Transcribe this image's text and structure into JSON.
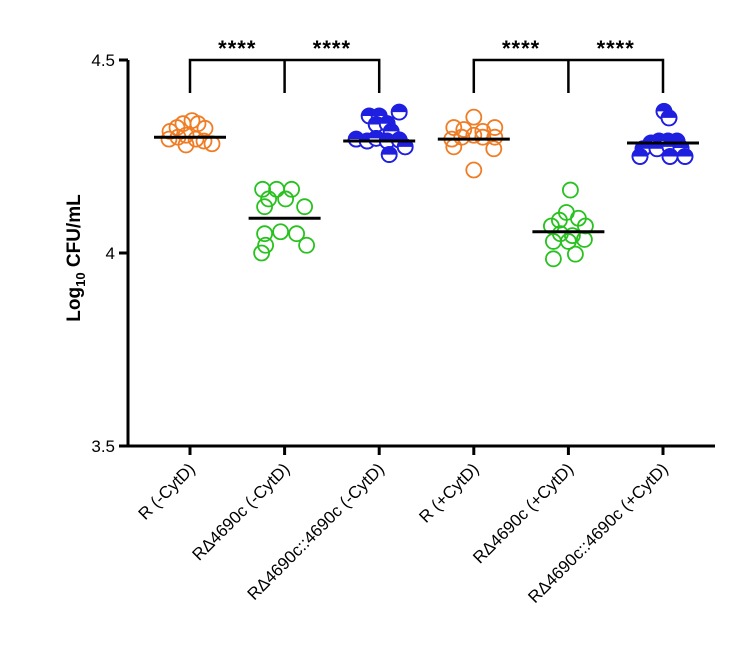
{
  "chart_data": {
    "type": "scatter",
    "ylabel": {
      "prefix": "Log",
      "subscript": "10",
      "suffix": " CFU/mL"
    },
    "ylim": [
      3.5,
      4.5
    ],
    "yticks": [
      "3.5",
      "4",
      "4.5"
    ],
    "categories": [
      "R (-CytD)",
      "RΔ4690c (-CytD)",
      "RΔ4690c::4690c (-CytD)",
      "R (+CytD)",
      "RΔ4690c (+CytD)",
      "RΔ4690c::4690c (+CytD)"
    ],
    "colors": [
      "#f07c24",
      "#27c21d",
      "#1f1fe0",
      "#f07c24",
      "#27c21d",
      "#1f1fe0"
    ],
    "groups": [
      {
        "mean": 4.3,
        "points": [
          {
            "dx": -0.2,
            "y": 4.315
          },
          {
            "dx": -0.13,
            "y": 4.325
          },
          {
            "dx": -0.07,
            "y": 4.335
          },
          {
            "dx": 0.02,
            "y": 4.343
          },
          {
            "dx": 0.08,
            "y": 4.335
          },
          {
            "dx": 0.15,
            "y": 4.323
          },
          {
            "dx": -0.21,
            "y": 4.295
          },
          {
            "dx": -0.12,
            "y": 4.3
          },
          {
            "dx": -0.04,
            "y": 4.305
          },
          {
            "dx": 0.06,
            "y": 4.295
          },
          {
            "dx": 0.14,
            "y": 4.29
          },
          {
            "dx": -0.04,
            "y": 4.28
          },
          {
            "dx": 0.22,
            "y": 4.283
          }
        ]
      },
      {
        "mean": 4.09,
        "points": [
          {
            "dx": -0.22,
            "y": 4.165
          },
          {
            "dx": -0.08,
            "y": 4.165
          },
          {
            "dx": 0.07,
            "y": 4.165
          },
          {
            "dx": -0.16,
            "y": 4.14
          },
          {
            "dx": 0.01,
            "y": 4.14
          },
          {
            "dx": -0.2,
            "y": 4.12
          },
          {
            "dx": 0.2,
            "y": 4.12
          },
          {
            "dx": -0.2,
            "y": 4.05
          },
          {
            "dx": -0.04,
            "y": 4.055
          },
          {
            "dx": 0.12,
            "y": 4.05
          },
          {
            "dx": -0.19,
            "y": 4.02
          },
          {
            "dx": 0.22,
            "y": 4.02
          },
          {
            "dx": -0.23,
            "y": 4.0
          }
        ]
      },
      {
        "mean": 4.29,
        "points": [
          {
            "dx": -0.1,
            "y": 4.355
          },
          {
            "dx": 0.0,
            "y": 4.355
          },
          {
            "dx": 0.2,
            "y": 4.365
          },
          {
            "dx": -0.03,
            "y": 4.333
          },
          {
            "dx": 0.08,
            "y": 4.335
          },
          {
            "dx": 0.12,
            "y": 4.315
          },
          {
            "dx": -0.23,
            "y": 4.295
          },
          {
            "dx": -0.12,
            "y": 4.29
          },
          {
            "dx": -0.03,
            "y": 4.297
          },
          {
            "dx": 0.08,
            "y": 4.29
          },
          {
            "dx": 0.2,
            "y": 4.293
          },
          {
            "dx": 0.26,
            "y": 4.275
          },
          {
            "dx": 0.1,
            "y": 4.255
          }
        ]
      },
      {
        "mean": 4.295,
        "points": [
          {
            "dx": -0.2,
            "y": 4.325
          },
          {
            "dx": -0.1,
            "y": 4.32
          },
          {
            "dx": 0.0,
            "y": 4.352
          },
          {
            "dx": 0.09,
            "y": 4.315
          },
          {
            "dx": 0.21,
            "y": 4.325
          },
          {
            "dx": -0.22,
            "y": 4.295
          },
          {
            "dx": -0.12,
            "y": 4.3
          },
          {
            "dx": 0.0,
            "y": 4.305
          },
          {
            "dx": 0.09,
            "y": 4.3
          },
          {
            "dx": 0.21,
            "y": 4.3
          },
          {
            "dx": -0.2,
            "y": 4.275
          },
          {
            "dx": 0.2,
            "y": 4.27
          },
          {
            "dx": 0.0,
            "y": 4.215
          }
        ]
      },
      {
        "mean": 4.055,
        "points": [
          {
            "dx": 0.02,
            "y": 4.163
          },
          {
            "dx": -0.02,
            "y": 4.105
          },
          {
            "dx": -0.17,
            "y": 4.07
          },
          {
            "dx": -0.09,
            "y": 4.085
          },
          {
            "dx": 0.1,
            "y": 4.09
          },
          {
            "dx": 0.17,
            "y": 4.07
          },
          {
            "dx": -0.08,
            "y": 4.05
          },
          {
            "dx": 0.04,
            "y": 4.045
          },
          {
            "dx": -0.15,
            "y": 4.03
          },
          {
            "dx": 0.0,
            "y": 4.03
          },
          {
            "dx": 0.16,
            "y": 4.035
          },
          {
            "dx": 0.07,
            "y": 3.997
          },
          {
            "dx": -0.15,
            "y": 3.985
          }
        ]
      },
      {
        "mean": 4.285,
        "points": [
          {
            "dx": 0.01,
            "y": 4.367
          },
          {
            "dx": 0.06,
            "y": 4.35
          },
          {
            "dx": -0.12,
            "y": 4.285
          },
          {
            "dx": -0.04,
            "y": 4.29
          },
          {
            "dx": 0.05,
            "y": 4.29
          },
          {
            "dx": 0.14,
            "y": 4.29
          },
          {
            "dx": -0.2,
            "y": 4.27
          },
          {
            "dx": -0.06,
            "y": 4.27
          },
          {
            "dx": 0.07,
            "y": 4.275
          },
          {
            "dx": 0.18,
            "y": 4.272
          },
          {
            "dx": -0.23,
            "y": 4.25
          },
          {
            "dx": 0.07,
            "y": 4.25
          },
          {
            "dx": 0.22,
            "y": 4.25
          }
        ]
      }
    ],
    "comparisons": [
      {
        "from": 0,
        "to": 2,
        "mid": 1,
        "y": 4.5,
        "labels": [
          "****",
          "****"
        ]
      },
      {
        "from": 3,
        "to": 5,
        "mid": 4,
        "y": 4.5,
        "labels": [
          "****",
          "****"
        ]
      }
    ],
    "grid": false,
    "legend": "none"
  }
}
